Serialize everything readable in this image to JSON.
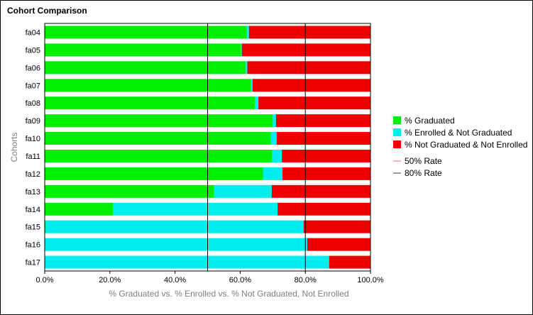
{
  "chart_data": {
    "type": "bar",
    "orientation": "horizontal",
    "stacked": true,
    "title": "Cohort Comparison",
    "xlabel": "% Graduated vs. % Enrolled vs. % Not Graduated, Not Enrolled",
    "ylabel": "Cohorts",
    "xlim": [
      0,
      100
    ],
    "xticks": [
      "0.0%",
      "20.0%",
      "40.0%",
      "60.0%",
      "80.0%",
      "100.0%"
    ],
    "categories": [
      "fa04",
      "fa05",
      "fa06",
      "fa07",
      "fa08",
      "fa09",
      "fa10",
      "fa11",
      "fa12",
      "fa13",
      "fa14",
      "fa15",
      "fa16",
      "fa17"
    ],
    "series": [
      {
        "name": "% Graduated",
        "color": "#00ee00",
        "values": [
          62.0,
          60.3,
          61.7,
          63.3,
          64.5,
          70.0,
          69.4,
          69.8,
          67.0,
          52.0,
          21.0,
          0.3,
          0.1,
          0.1
        ]
      },
      {
        "name": "% Enrolled & Not Graduated",
        "color": "#00eeee",
        "values": [
          0.7,
          0.2,
          0.5,
          0.5,
          1.1,
          1.0,
          1.8,
          3.0,
          6.0,
          17.7,
          50.5,
          79.2,
          80.5,
          87.2
        ]
      },
      {
        "name": "% Not Graduated & Not Enrolled",
        "color": "#ee0000",
        "values": [
          37.3,
          39.5,
          37.8,
          36.2,
          34.4,
          29.0,
          28.8,
          27.2,
          27.0,
          30.3,
          28.5,
          20.5,
          19.4,
          12.7
        ]
      }
    ],
    "reference_lines": [
      {
        "name": "50% Rate",
        "value": 50,
        "color": "#f0a0a0"
      },
      {
        "name": "80% Rate",
        "value": 80,
        "color": "#7f7f7f"
      }
    ],
    "grid": false,
    "legend": "right"
  }
}
